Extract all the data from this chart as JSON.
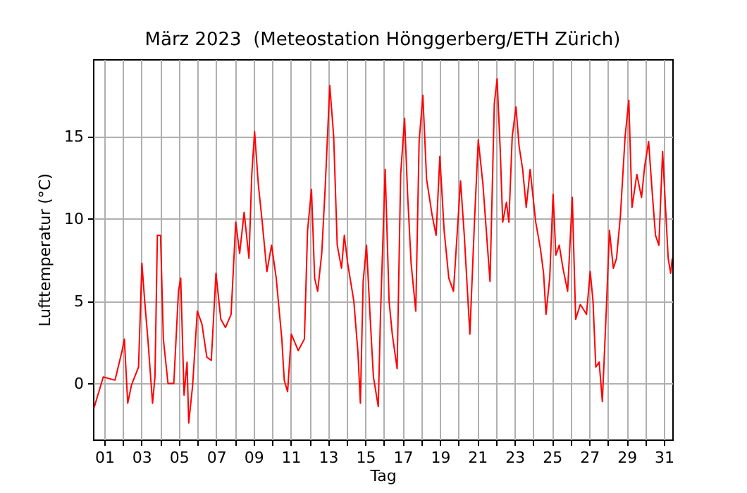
{
  "chart_data": {
    "type": "line",
    "title": "März 2023  (Meteostation Hönggerberg/ETH Zürich)",
    "xlabel": "Tag",
    "ylabel": "Lufttemperatur (°C)",
    "x": [
      0.45,
      0.95,
      1.58,
      1.96,
      2.08,
      2.26,
      2.46,
      2.84,
      3.02,
      3.17,
      3.34,
      3.59,
      3.72,
      3.85,
      4.02,
      4.17,
      4.42,
      4.73,
      4.98,
      5.1,
      5.28,
      5.44,
      5.53,
      5.74,
      5.99,
      6.24,
      6.5,
      6.74,
      6.99,
      7.25,
      7.5,
      7.8,
      8.05,
      8.26,
      8.5,
      8.76,
      8.91,
      9.06,
      9.26,
      9.47,
      9.72,
      9.97,
      10.22,
      10.52,
      10.65,
      10.83,
      11.03,
      11.4,
      11.73,
      11.9,
      12.11,
      12.28,
      12.44,
      12.66,
      12.84,
      13.09,
      13.3,
      13.49,
      13.72,
      13.87,
      14.05,
      14.38,
      14.6,
      14.73,
      14.88,
      15.06,
      15.26,
      15.43,
      15.69,
      15.81,
      16.06,
      16.27,
      16.44,
      16.7,
      16.89,
      17.1,
      17.27,
      17.45,
      17.7,
      17.88,
      18.08,
      18.28,
      18.58,
      18.79,
      18.99,
      19.22,
      19.47,
      19.72,
      20.1,
      20.3,
      20.6,
      20.86,
      21.05,
      21.3,
      21.48,
      21.68,
      21.91,
      22.06,
      22.23,
      22.36,
      22.56,
      22.69,
      22.87,
      23.07,
      23.24,
      23.43,
      23.62,
      23.83,
      24.13,
      24.38,
      24.55,
      24.68,
      24.88,
      25.06,
      25.21,
      25.39,
      25.59,
      25.84,
      26.09,
      26.27,
      26.52,
      26.85,
      27.05,
      27.2,
      27.35,
      27.53,
      27.7,
      27.91,
      28.08,
      28.29,
      28.46,
      28.67,
      28.92,
      29.12,
      29.29,
      29.55,
      29.8,
      29.97,
      30.18,
      30.38,
      30.55,
      30.73,
      30.93,
      31.1,
      31.23,
      31.36,
      31.45
    ],
    "series": [
      {
        "color": "#ff0000",
        "values": [
          -1.5,
          0.4,
          0.2,
          2.0,
          2.7,
          -1.2,
          -0.1,
          1.0,
          7.3,
          5.0,
          2.7,
          -1.2,
          0.4,
          9.0,
          9.0,
          2.7,
          0.0,
          0.0,
          5.6,
          6.4,
          -0.7,
          1.3,
          -2.4,
          -0.1,
          4.4,
          3.6,
          1.6,
          1.4,
          6.7,
          3.9,
          3.4,
          4.2,
          9.8,
          7.9,
          10.4,
          7.6,
          12.7,
          15.3,
          12.1,
          9.8,
          6.8,
          8.4,
          6.4,
          2.7,
          0.2,
          -0.5,
          3.0,
          2.0,
          2.7,
          9.3,
          11.8,
          6.4,
          5.6,
          7.9,
          11.8,
          18.1,
          15.0,
          8.4,
          7.0,
          9.0,
          7.3,
          5.0,
          1.9,
          -1.2,
          6.2,
          8.4,
          3.9,
          0.4,
          -1.4,
          4.2,
          13.0,
          5.0,
          3.0,
          0.9,
          12.7,
          16.1,
          11.3,
          7.3,
          4.4,
          14.7,
          17.5,
          12.4,
          10.2,
          9.0,
          13.8,
          9.3,
          6.4,
          5.6,
          12.3,
          9.0,
          3.0,
          10.2,
          14.8,
          12.1,
          9.3,
          6.2,
          17.0,
          18.5,
          14.1,
          9.8,
          11.0,
          9.8,
          15.0,
          16.8,
          14.4,
          13.0,
          10.7,
          13.0,
          9.8,
          8.2,
          6.7,
          4.2,
          6.4,
          11.5,
          7.8,
          8.4,
          7.0,
          5.6,
          11.3,
          3.9,
          4.8,
          4.2,
          6.8,
          5.0,
          1.0,
          1.3,
          -1.1,
          4.4,
          9.3,
          7.0,
          7.6,
          10.2,
          15.0,
          17.2,
          10.7,
          12.7,
          11.3,
          13.2,
          14.7,
          11.5,
          9.0,
          8.4,
          14.1,
          10.4,
          7.6,
          6.7,
          7.6
        ]
      }
    ],
    "xlim": [
      0.4,
      31.45
    ],
    "ylim": [
      -3.4,
      19.7
    ],
    "xticks": [
      {
        "value": 1,
        "label": "01"
      },
      {
        "value": 2,
        "label": null
      },
      {
        "value": 3,
        "label": "03"
      },
      {
        "value": 4,
        "label": null
      },
      {
        "value": 5,
        "label": "05"
      },
      {
        "value": 6,
        "label": null
      },
      {
        "value": 7,
        "label": "07"
      },
      {
        "value": 8,
        "label": null
      },
      {
        "value": 9,
        "label": "09"
      },
      {
        "value": 10,
        "label": null
      },
      {
        "value": 11,
        "label": "11"
      },
      {
        "value": 12,
        "label": null
      },
      {
        "value": 13,
        "label": "13"
      },
      {
        "value": 14,
        "label": null
      },
      {
        "value": 15,
        "label": "15"
      },
      {
        "value": 16,
        "label": null
      },
      {
        "value": 17,
        "label": "17"
      },
      {
        "value": 18,
        "label": null
      },
      {
        "value": 19,
        "label": "19"
      },
      {
        "value": 20,
        "label": null
      },
      {
        "value": 21,
        "label": "21"
      },
      {
        "value": 22,
        "label": null
      },
      {
        "value": 23,
        "label": "23"
      },
      {
        "value": 24,
        "label": null
      },
      {
        "value": 25,
        "label": "25"
      },
      {
        "value": 26,
        "label": null
      },
      {
        "value": 27,
        "label": "27"
      },
      {
        "value": 28,
        "label": null
      },
      {
        "value": 29,
        "label": "29"
      },
      {
        "value": 30,
        "label": null
      },
      {
        "value": 31,
        "label": "31"
      }
    ],
    "yticks": [
      0,
      5,
      10,
      15
    ],
    "grid": true
  }
}
